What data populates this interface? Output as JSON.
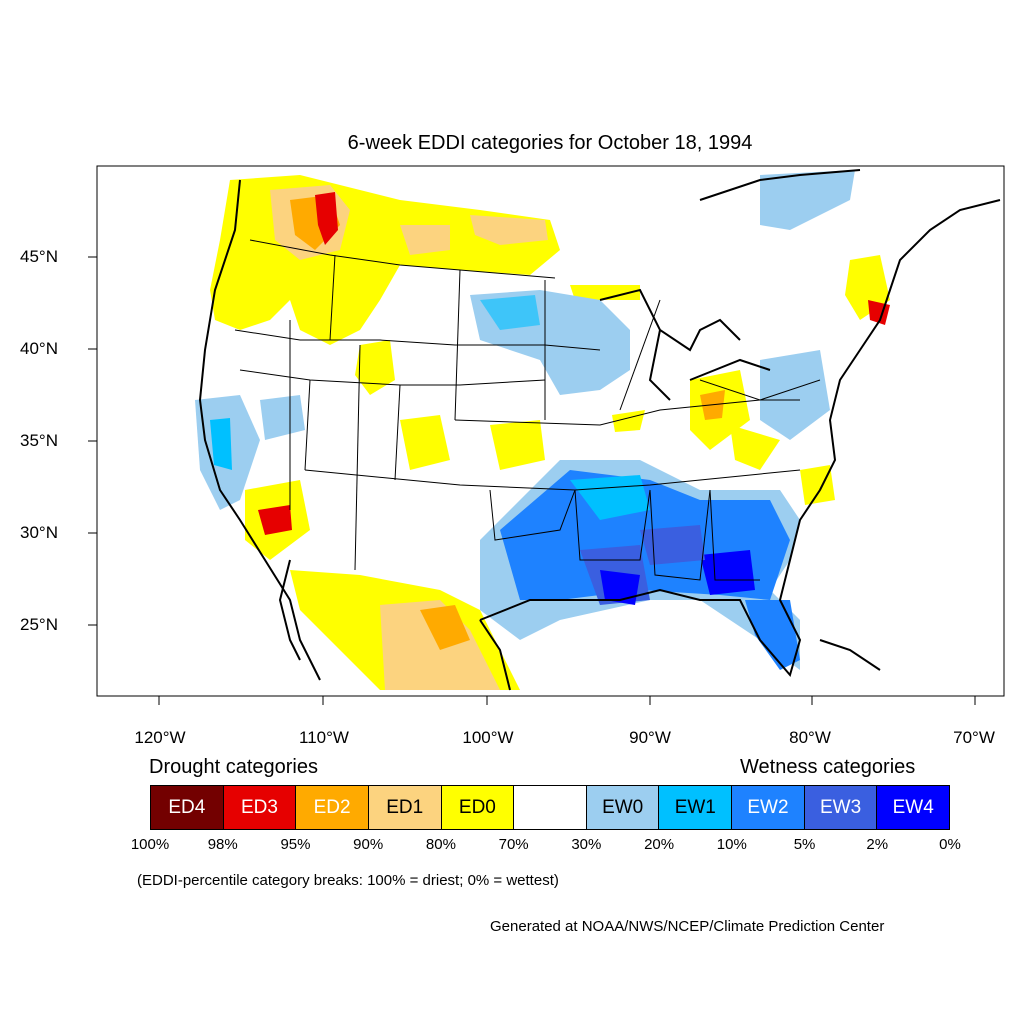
{
  "title": "6-week EDDI categories for October 18, 1994",
  "lat_labels": [
    "45°N",
    "40°N",
    "35°N",
    "30°N",
    "25°N"
  ],
  "lon_labels": [
    "120°W",
    "110°W",
    "100°W",
    "90°W",
    "80°W",
    "70°W"
  ],
  "legend": {
    "drought_heading": "Drought categories",
    "wetness_heading": "Wetness categories",
    "categories": [
      {
        "label": "ED4",
        "color": "#730000",
        "text_color": "#ffffff"
      },
      {
        "label": "ED3",
        "color": "#e60000",
        "text_color": "#ffffff"
      },
      {
        "label": "ED2",
        "color": "#ffaa00",
        "text_color": "#ffffff"
      },
      {
        "label": "ED1",
        "color": "#fcd37f",
        "text_color": "#000000"
      },
      {
        "label": "ED0",
        "color": "#ffff00",
        "text_color": "#000000"
      },
      {
        "label": "",
        "color": "#ffffff",
        "text_color": "#000000"
      },
      {
        "label": "EW0",
        "color": "#9ccef0",
        "text_color": "#000000"
      },
      {
        "label": "EW1",
        "color": "#00c0ff",
        "text_color": "#000000"
      },
      {
        "label": "EW2",
        "color": "#1e82ff",
        "text_color": "#ffffff"
      },
      {
        "label": "EW3",
        "color": "#3a5fe0",
        "text_color": "#ffffff"
      },
      {
        "label": "EW4",
        "color": "#0000ff",
        "text_color": "#ffffff"
      }
    ],
    "percent_breaks": [
      "100%",
      "98%",
      "95%",
      "90%",
      "80%",
      "70%",
      "30%",
      "20%",
      "10%",
      "5%",
      "2%",
      "0%"
    ]
  },
  "note": "(EDDI-percentile category breaks: 100% = driest; 0% = wettest)",
  "credit": "Generated at NOAA/NWS/NCEP/Climate Prediction Center"
}
